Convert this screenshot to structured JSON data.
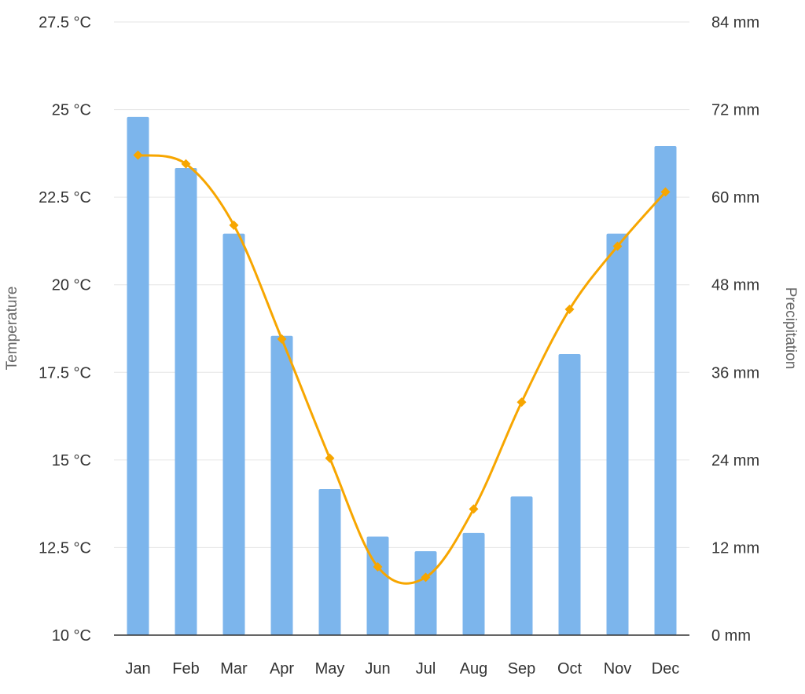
{
  "chart_data": {
    "type": "bar",
    "categories": [
      "Jan",
      "Feb",
      "Mar",
      "Apr",
      "May",
      "Jun",
      "Jul",
      "Aug",
      "Sep",
      "Oct",
      "Nov",
      "Dec"
    ],
    "series": [
      {
        "type": "bar",
        "axis": "right",
        "values": [
          71,
          64,
          55,
          41,
          20,
          13.5,
          11.5,
          14,
          19,
          38.5,
          55,
          67
        ],
        "color": "#7cb5ec"
      },
      {
        "type": "line",
        "axis": "left",
        "smooth": true,
        "marker": "diamond",
        "values": [
          23.7,
          23.45,
          21.7,
          18.45,
          15.05,
          11.95,
          11.65,
          13.6,
          16.65,
          19.3,
          21.1,
          22.65
        ],
        "color": "#f7a600"
      }
    ],
    "ylabel_left": "Temperature",
    "ylabel_right": "Precipitation",
    "ylim_left": [
      10,
      27.5
    ],
    "ylim_right": [
      0,
      84
    ],
    "yticks_left": [
      "10 °C",
      "12.5 °C",
      "15 °C",
      "17.5 °C",
      "20 °C",
      "22.5 °C",
      "25 °C",
      "27.5 °C"
    ],
    "yticks_right": [
      "0 mm",
      "12 mm",
      "24 mm",
      "36 mm",
      "48 mm",
      "60 mm",
      "72 mm",
      "84 mm"
    ],
    "grid": true,
    "legend": "none",
    "gridline_color": "#e6e6e6",
    "axis_line_color": "#333333"
  }
}
